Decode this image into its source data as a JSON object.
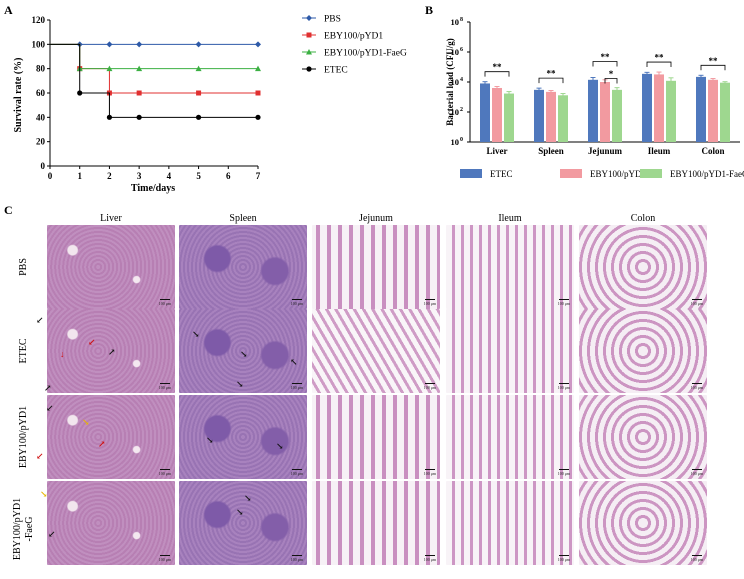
{
  "panel_labels": [
    "A",
    "B",
    "C"
  ],
  "chart_data": [
    {
      "type": "line",
      "panel": "A",
      "title": "",
      "xlabel": "Time/days",
      "ylabel": "Survival rate (%)",
      "xlim": [
        0,
        7
      ],
      "ylim": [
        0,
        120
      ],
      "x_ticks": [
        "0",
        "1",
        "2",
        "3",
        "4",
        "5",
        "6",
        "7"
      ],
      "y_ticks": [
        "0",
        "20",
        "40",
        "60",
        "80",
        "100",
        "120"
      ],
      "legend_position": "right",
      "series": [
        {
          "name": "PBS",
          "color": "#2e5aa8",
          "marker": "diamond",
          "x": [
            0,
            1,
            2,
            3,
            5,
            7
          ],
          "y": [
            100,
            100,
            100,
            100,
            100,
            100
          ]
        },
        {
          "name": "EBY100/pYD1",
          "color": "#e03030",
          "marker": "square",
          "x": [
            0,
            1,
            1,
            2,
            2,
            3,
            5,
            7
          ],
          "y": [
            100,
            100,
            80,
            80,
            60,
            60,
            60,
            60
          ]
        },
        {
          "name": "EBY100/pYD1-FaeG",
          "color": "#3cb043",
          "marker": "triangle",
          "x": [
            0,
            1,
            1,
            2,
            3,
            5,
            7
          ],
          "y": [
            100,
            100,
            80,
            80,
            80,
            80,
            80
          ]
        },
        {
          "name": "ETEC",
          "color": "#000000",
          "marker": "circle",
          "x": [
            0,
            1,
            1,
            2,
            2,
            3,
            5,
            7
          ],
          "y": [
            100,
            100,
            60,
            60,
            40,
            40,
            40,
            40
          ]
        }
      ]
    },
    {
      "type": "bar",
      "panel": "B",
      "title": "",
      "xlabel": "",
      "ylabel": "Bacterial load (CFU/g)",
      "y_scale": "log",
      "ylim": [
        1,
        100000000
      ],
      "y_ticks": [
        {
          "base": "10",
          "exp": "0"
        },
        {
          "base": "10",
          "exp": "2"
        },
        {
          "base": "10",
          "exp": "4"
        },
        {
          "base": "10",
          "exp": "6"
        },
        {
          "base": "10",
          "exp": "8"
        }
      ],
      "categories": [
        "Liver",
        "Spleen",
        "Jejunum",
        "Ileum",
        "Colon"
      ],
      "legend_position": "bottom",
      "series": [
        {
          "name": "ETEC",
          "color": "#4f78bd",
          "values": [
            8000,
            3000,
            14000,
            35000,
            22000
          ],
          "errors": [
            2500,
            900,
            6000,
            9000,
            6000
          ]
        },
        {
          "name": "EBY100/pYD1",
          "color": "#f29aa0",
          "values": [
            4000,
            2200,
            10000,
            32000,
            14000
          ],
          "errors": [
            1000,
            500,
            4000,
            14000,
            3000
          ]
        },
        {
          "name": "EBY100/pYD1-FaeG",
          "color": "#9ed78f",
          "values": [
            1700,
            1300,
            3000,
            12000,
            9000
          ],
          "errors": [
            600,
            400,
            1200,
            7000,
            1500
          ]
        }
      ],
      "significance": [
        "**",
        "**",
        "**",
        "*",
        "**",
        "**"
      ]
    }
  ],
  "histology": {
    "columns": [
      "Liver",
      "Spleen",
      "Jejunum",
      "Ileum",
      "Colon"
    ],
    "rows": [
      "PBS",
      "ETEC",
      "EBY100/pYD1",
      "EBY100/pYD1\n-FaeG"
    ],
    "scale_label": "100 μm"
  }
}
